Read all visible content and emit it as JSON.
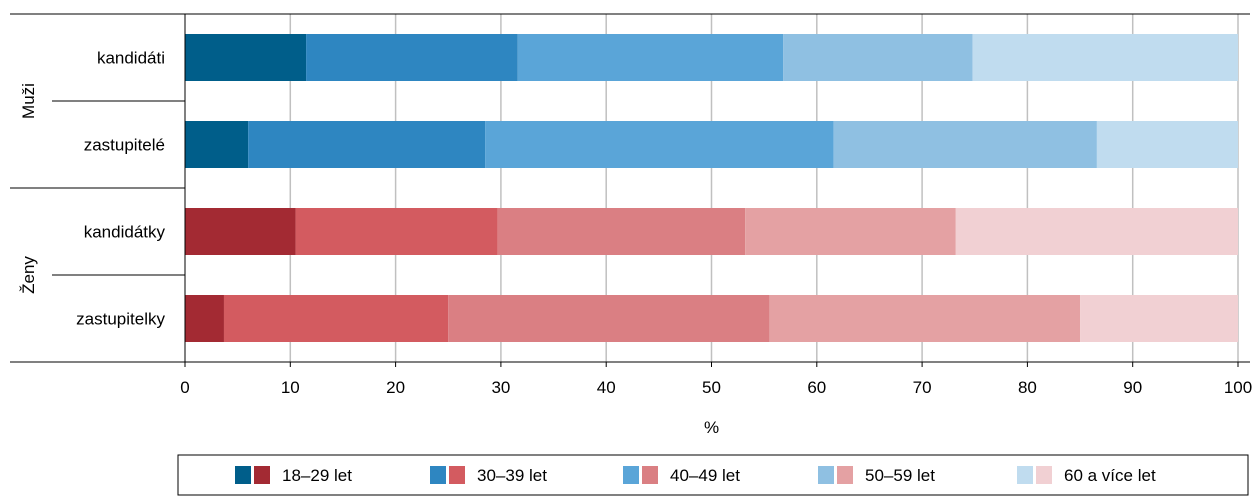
{
  "chart_data": {
    "type": "bar",
    "orientation": "horizontal",
    "stacked": true,
    "xlabel": "%",
    "xlim": [
      0,
      100
    ],
    "xticks": [
      0,
      10,
      20,
      30,
      40,
      50,
      60,
      70,
      80,
      90,
      100
    ],
    "grid": true,
    "legend_position": "bottom",
    "groups": [
      {
        "label": "Muži",
        "categories": [
          "kandidáti",
          "zastupitelé"
        ]
      },
      {
        "label": "Ženy",
        "categories": [
          "kandidátky",
          "zastupitelky"
        ]
      }
    ],
    "categories": [
      "kandidáti",
      "zastupitelé",
      "kandidátky",
      "zastupitelky"
    ],
    "series": [
      {
        "name": "18–29 let",
        "values": [
          11.5,
          6.0,
          10.5,
          3.7
        ]
      },
      {
        "name": "30–39 let",
        "values": [
          20.1,
          22.5,
          19.2,
          21.3
        ]
      },
      {
        "name": "40–49 let",
        "values": [
          25.2,
          33.1,
          23.5,
          30.5
        ]
      },
      {
        "name": "50–59 let",
        "values": [
          18.0,
          25.0,
          20.0,
          29.5
        ]
      },
      {
        "name": "60 a více let",
        "values": [
          25.2,
          13.4,
          26.8,
          15.0
        ]
      }
    ],
    "colors": {
      "Muži": [
        "#005e8a",
        "#2e86c1",
        "#5aa5d8",
        "#8fc0e2",
        "#c0dcef"
      ],
      "Ženy": [
        "#a32a33",
        "#d35b60",
        "#da7f83",
        "#e4a1a3",
        "#f1d0d3"
      ]
    }
  }
}
